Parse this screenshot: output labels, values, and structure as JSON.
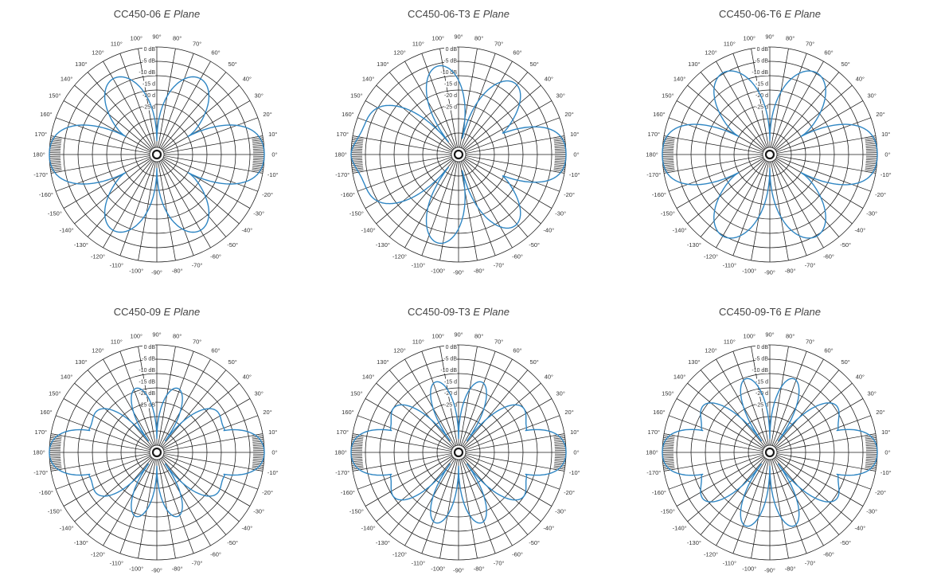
{
  "chart_data": [
    {
      "type": "polar",
      "title_main": "CC450-06",
      "title_italic": "E Plane",
      "r_labels": [
        "0 dB",
        "-5 dB",
        "-10 dB",
        "-15 d",
        "-20 d",
        "-25 d"
      ],
      "angle_labels": [
        "0°",
        "10°",
        "20°",
        "30°",
        "40°",
        "50°",
        "60°",
        "70°",
        "80°",
        "90°",
        "100°",
        "110°",
        "120°",
        "130°",
        "140°",
        "150°",
        "160°",
        "170°",
        "180°",
        "-170°",
        "-160°",
        "-150°",
        "-140°",
        "-130°",
        "-120°",
        "-110°",
        "-100°",
        "-90°",
        "-80°",
        "-70°",
        "-60°",
        "-50°",
        "-40°",
        "-30°",
        "-20°",
        "-10°"
      ],
      "series": [
        {
          "color": "#2f86c3",
          "lobe_count": 6,
          "main_lobe_db": 0,
          "side_lobe_db": -6,
          "null_db": -28
        }
      ]
    },
    {
      "type": "polar",
      "title_main": "CC450-06-T3",
      "title_italic": "E Plane",
      "r_labels": [
        "0 dB",
        "-5 dB",
        "-10 dB",
        "-15 d",
        "-20 d",
        "-25 d"
      ],
      "angle_labels": [
        "0°",
        "10°",
        "20°",
        "30°",
        "40°",
        "50°",
        "60°",
        "70°",
        "80°",
        "90°",
        "100°",
        "110°",
        "120°",
        "130°",
        "140°",
        "150°",
        "160°",
        "170°",
        "180°",
        "-170°",
        "-160°",
        "-150°",
        "-140°",
        "-130°",
        "-120°",
        "-110°",
        "-100°",
        "-90°",
        "-80°",
        "-70°",
        "-60°",
        "-50°",
        "-40°",
        "-30°",
        "-20°",
        "-10°"
      ],
      "series": [
        {
          "color": "#2f86c3",
          "lobe_count": 7,
          "main_lobe_db": 0,
          "side_lobe_db": -5,
          "null_db": -28
        }
      ]
    },
    {
      "type": "polar",
      "title_main": "CC450-06-T6",
      "title_italic": "E Plane",
      "r_labels": [
        "0 dB",
        "-5 dB",
        "-10 dB",
        "-15 d",
        "-20 d",
        "-25 d"
      ],
      "angle_labels": [
        "0°",
        "10°",
        "20°",
        "30°",
        "40°",
        "50°",
        "60°",
        "70°",
        "80°",
        "90°",
        "100°",
        "110°",
        "120°",
        "130°",
        "140°",
        "150°",
        "160°",
        "170°",
        "180°",
        "-170°",
        "-160°",
        "-150°",
        "-140°",
        "-130°",
        "-120°",
        "-110°",
        "-100°",
        "-90°",
        "-80°",
        "-70°",
        "-60°",
        "-50°",
        "-40°",
        "-30°",
        "-20°",
        "-10°"
      ],
      "series": [
        {
          "color": "#2f86c3",
          "lobe_count": 6,
          "main_lobe_db": 0,
          "side_lobe_db": -4,
          "null_db": -28
        }
      ]
    },
    {
      "type": "polar",
      "title_main": "CC450-09",
      "title_italic": "E Plane",
      "r_labels": [
        "0 dB",
        "-5 dB",
        "-10 dB",
        "-15 dB",
        "-20 dB",
        "-25 dB"
      ],
      "angle_labels": [
        "0°",
        "10°",
        "20°",
        "30°",
        "40°",
        "50°",
        "60°",
        "70°",
        "80°",
        "90°",
        "100°",
        "110°",
        "120°",
        "130°",
        "140°",
        "150°",
        "160°",
        "170°",
        "180°",
        "-170°",
        "-160°",
        "-150°",
        "-140°",
        "-130°",
        "-120°",
        "-110°",
        "-100°",
        "-90°",
        "-80°",
        "-70°",
        "-60°",
        "-50°",
        "-40°",
        "-30°",
        "-20°",
        "-10°"
      ],
      "series": [
        {
          "color": "#2f86c3",
          "lobe_count": 10,
          "main_lobe_db": 0,
          "side_lobe_db": -12,
          "null_db": -28
        }
      ]
    },
    {
      "type": "polar",
      "title_main": "CC450-09-T3",
      "title_italic": "E Plane",
      "r_labels": [
        "0 dB",
        "-5 dB",
        "-10 dB",
        "-15 d",
        "-20 d",
        "-25 d"
      ],
      "angle_labels": [
        "0°",
        "10°",
        "20°",
        "30°",
        "40°",
        "50°",
        "60°",
        "70°",
        "80°",
        "90°",
        "100°",
        "110°",
        "120°",
        "130°",
        "140°",
        "150°",
        "160°",
        "170°",
        "180°",
        "-170°",
        "-160°",
        "-150°",
        "-140°",
        "-130°",
        "-120°",
        "-110°",
        "-100°",
        "-90°",
        "-80°",
        "-70°",
        "-60°",
        "-50°",
        "-40°",
        "-30°",
        "-20°",
        "-10°"
      ],
      "series": [
        {
          "color": "#2f86c3",
          "lobe_count": 10,
          "main_lobe_db": 0,
          "side_lobe_db": -10,
          "null_db": -28
        }
      ]
    },
    {
      "type": "polar",
      "title_main": "CC450-09-T6",
      "title_italic": "E Plane",
      "r_labels": [
        "0 dB",
        "-5 dB",
        "-10 dB",
        "-15 d",
        "-20 d",
        "-25 d"
      ],
      "angle_labels": [
        "0°",
        "10°",
        "20°",
        "30°",
        "40°",
        "50°",
        "60°",
        "70°",
        "80°",
        "90°",
        "100°",
        "110°",
        "120°",
        "130°",
        "140°",
        "150°",
        "160°",
        "170°",
        "180°",
        "-170°",
        "-160°",
        "-150°",
        "-140°",
        "-130°",
        "-120°",
        "-110°",
        "-100°",
        "-90°",
        "-80°",
        "-70°",
        "-60°",
        "-50°",
        "-40°",
        "-30°",
        "-20°",
        "-10°"
      ],
      "series": [
        {
          "color": "#2f86c3",
          "lobe_count": 10,
          "main_lobe_db": 0,
          "side_lobe_db": -9,
          "null_db": -28
        }
      ]
    }
  ]
}
